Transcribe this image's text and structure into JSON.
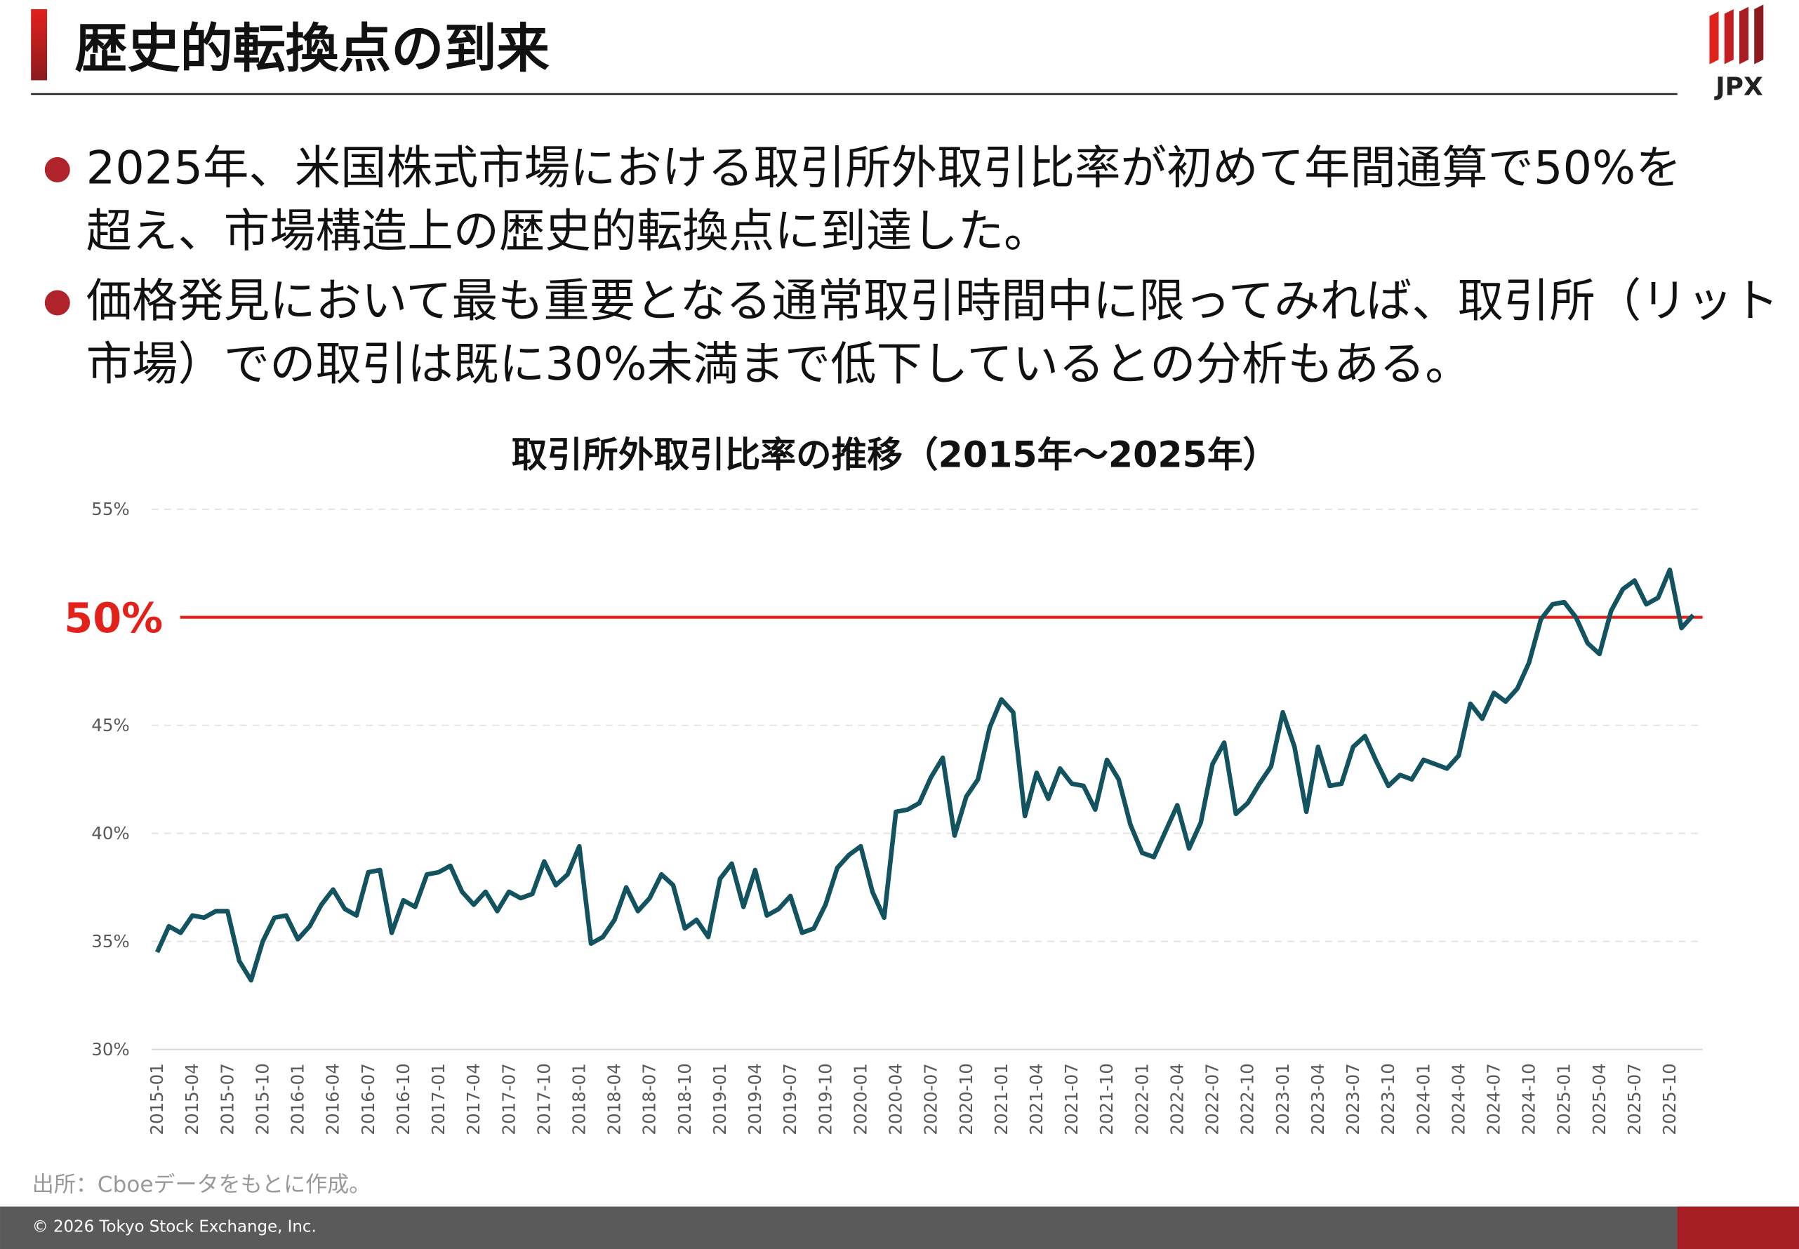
{
  "header": {
    "title": "歴史的転換点の到来",
    "logo": "JPX"
  },
  "bullets": [
    [
      "2025年、米国株式市場における取引所外取引比率が初めて年間通算で50%を",
      "超え、市場構造上の歴史的転換点に到達した。"
    ],
    [
      "価格発見において最も重要となる通常取引時間中に限ってみれば、取引所（リット",
      "市場）での取引は既に30%未満まで低下しているとの分析もある。"
    ]
  ],
  "chart_data": {
    "type": "line",
    "title": "取引所外取引比率の推移（2015年～2025年）",
    "categories": [
      "2015-01",
      null,
      null,
      "2015-04",
      null,
      null,
      "2015-07",
      null,
      null,
      "2015-10",
      null,
      null,
      "2016-01",
      null,
      null,
      "2016-04",
      null,
      null,
      "2016-07",
      null,
      null,
      "2016-10",
      null,
      null,
      "2017-01",
      null,
      null,
      "2017-04",
      null,
      null,
      "2017-07",
      null,
      null,
      "2017-10",
      null,
      null,
      "2018-01",
      null,
      null,
      "2018-04",
      null,
      null,
      "2018-07",
      null,
      null,
      "2018-10",
      null,
      null,
      "2019-01",
      null,
      null,
      "2019-04",
      null,
      null,
      "2019-07",
      null,
      null,
      "2019-10",
      null,
      null,
      "2020-01",
      null,
      null,
      "2020-04",
      null,
      null,
      "2020-07",
      null,
      null,
      "2020-10",
      null,
      null,
      "2021-01",
      null,
      null,
      "2021-04",
      null,
      null,
      "2021-07",
      null,
      null,
      "2021-10",
      null,
      null,
      "2022-01",
      null,
      null,
      "2022-04",
      null,
      null,
      "2022-07",
      null,
      null,
      "2022-10",
      null,
      null,
      "2023-01",
      null,
      null,
      "2023-04",
      null,
      null,
      "2023-07",
      null,
      null,
      "2023-10",
      null,
      null,
      "2024-01",
      null,
      null,
      "2024-04",
      null,
      null,
      "2024-07",
      null,
      null,
      "2024-10",
      null,
      null,
      "2025-01",
      null,
      null,
      "2025-04",
      null,
      null,
      "2025-07",
      null,
      null,
      "2025-10",
      null,
      null
    ],
    "series": [
      {
        "color": "#12535f",
        "values": [
          34.5,
          35.7,
          35.4,
          36.2,
          36.1,
          36.4,
          36.4,
          34.1,
          33.2,
          35.0,
          36.1,
          36.2,
          35.1,
          35.7,
          36.7,
          37.4,
          36.5,
          36.2,
          38.2,
          38.3,
          35.4,
          36.9,
          36.6,
          38.1,
          38.2,
          38.5,
          37.3,
          36.7,
          37.3,
          36.4,
          37.3,
          37.0,
          37.2,
          38.7,
          37.6,
          38.1,
          39.4,
          34.9,
          35.2,
          36.0,
          37.5,
          36.4,
          37.0,
          38.1,
          37.6,
          35.6,
          36.0,
          35.2,
          37.9,
          38.6,
          36.6,
          38.3,
          36.2,
          36.5,
          37.1,
          35.4,
          35.6,
          36.7,
          38.4,
          39.0,
          39.4,
          37.3,
          36.1,
          41.0,
          41.1,
          41.4,
          42.6,
          43.5,
          39.9,
          41.7,
          42.5,
          44.9,
          46.2,
          45.6,
          40.8,
          42.8,
          41.6,
          43.0,
          42.3,
          42.2,
          41.1,
          43.4,
          42.5,
          40.4,
          39.1,
          38.9,
          40.1,
          41.3,
          39.3,
          40.5,
          43.2,
          44.2,
          40.9,
          41.4,
          42.3,
          43.1,
          45.6,
          44.0,
          41.0,
          44.0,
          42.2,
          42.3,
          44.0,
          44.5,
          43.3,
          42.2,
          42.7,
          42.5,
          43.4,
          43.2,
          43.0,
          43.6,
          46.0,
          45.3,
          46.5,
          46.1,
          46.7,
          47.9,
          49.9,
          50.6,
          50.7,
          50.0,
          48.8,
          48.3,
          50.3,
          51.3,
          51.7,
          50.6,
          50.9,
          52.2,
          49.5,
          50.1
        ]
      }
    ],
    "ylim": [
      30,
      55
    ],
    "yticks": [
      {
        "value": 30,
        "label": "30%"
      },
      {
        "value": 35,
        "label": "35%"
      },
      {
        "value": 40,
        "label": "40%"
      },
      {
        "value": 45,
        "label": "45%"
      },
      {
        "value": 50,
        "label": "50%"
      },
      {
        "value": 55,
        "label": "55%"
      }
    ],
    "grid": true,
    "reference_line": {
      "value": 50,
      "label": "50%",
      "color": "#e3211b"
    }
  },
  "source": "出所：Cboeデータをもとに作成。",
  "footer": "© 2026 Tokyo Stock Exchange, Inc."
}
